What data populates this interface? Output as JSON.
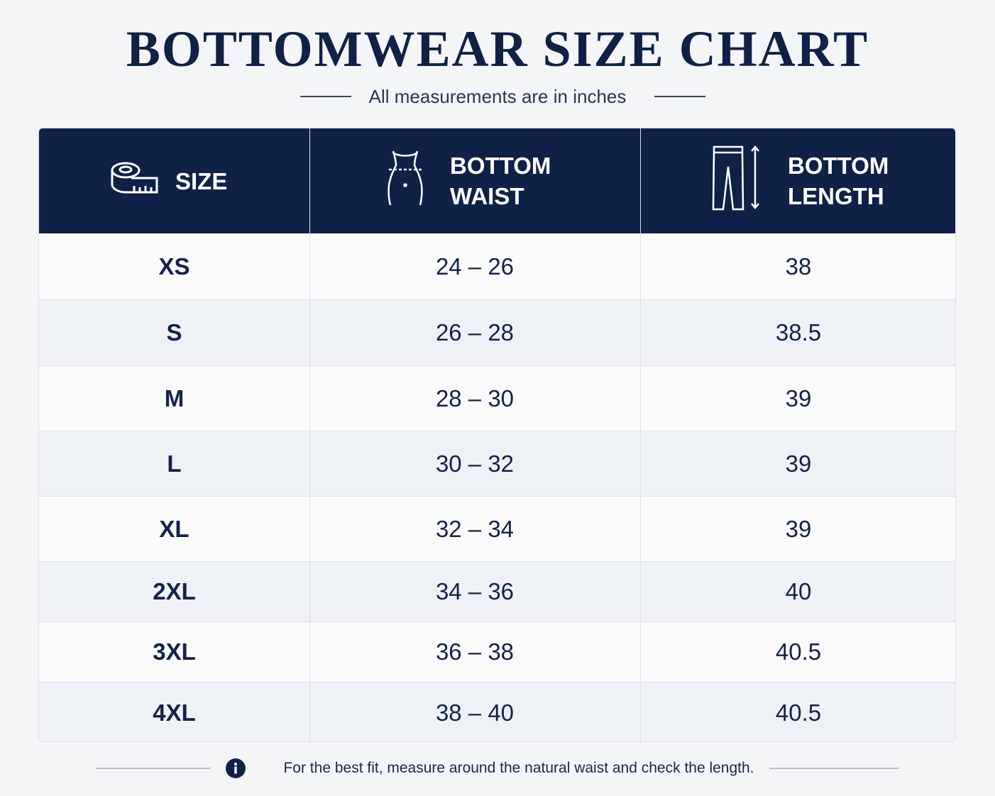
{
  "header": {
    "title": "BOTTOMWEAR SIZE CHART",
    "subtitle": "All measurements are in inches"
  },
  "table": {
    "columns": [
      [
        "SIZE"
      ],
      [
        "BOTTOM",
        "WAIST"
      ],
      [
        "BOTTOM",
        "LENGTH"
      ]
    ],
    "rows": [
      [
        "XS",
        "24 – 26",
        "38"
      ],
      [
        "S",
        "26 – 28",
        "38.5"
      ],
      [
        "M",
        "28 – 30",
        "39"
      ],
      [
        "L",
        "30 – 32",
        "39"
      ],
      [
        "XL",
        "32 – 34",
        "39"
      ],
      [
        "2XL",
        "34 – 36",
        "40"
      ],
      [
        "3XL",
        "36 – 38",
        "40.5"
      ],
      [
        "4XL",
        "38 – 40",
        "40.5"
      ]
    ]
  },
  "footer": {
    "note": "For the best fit, measure around the natural waist and check the length."
  }
}
